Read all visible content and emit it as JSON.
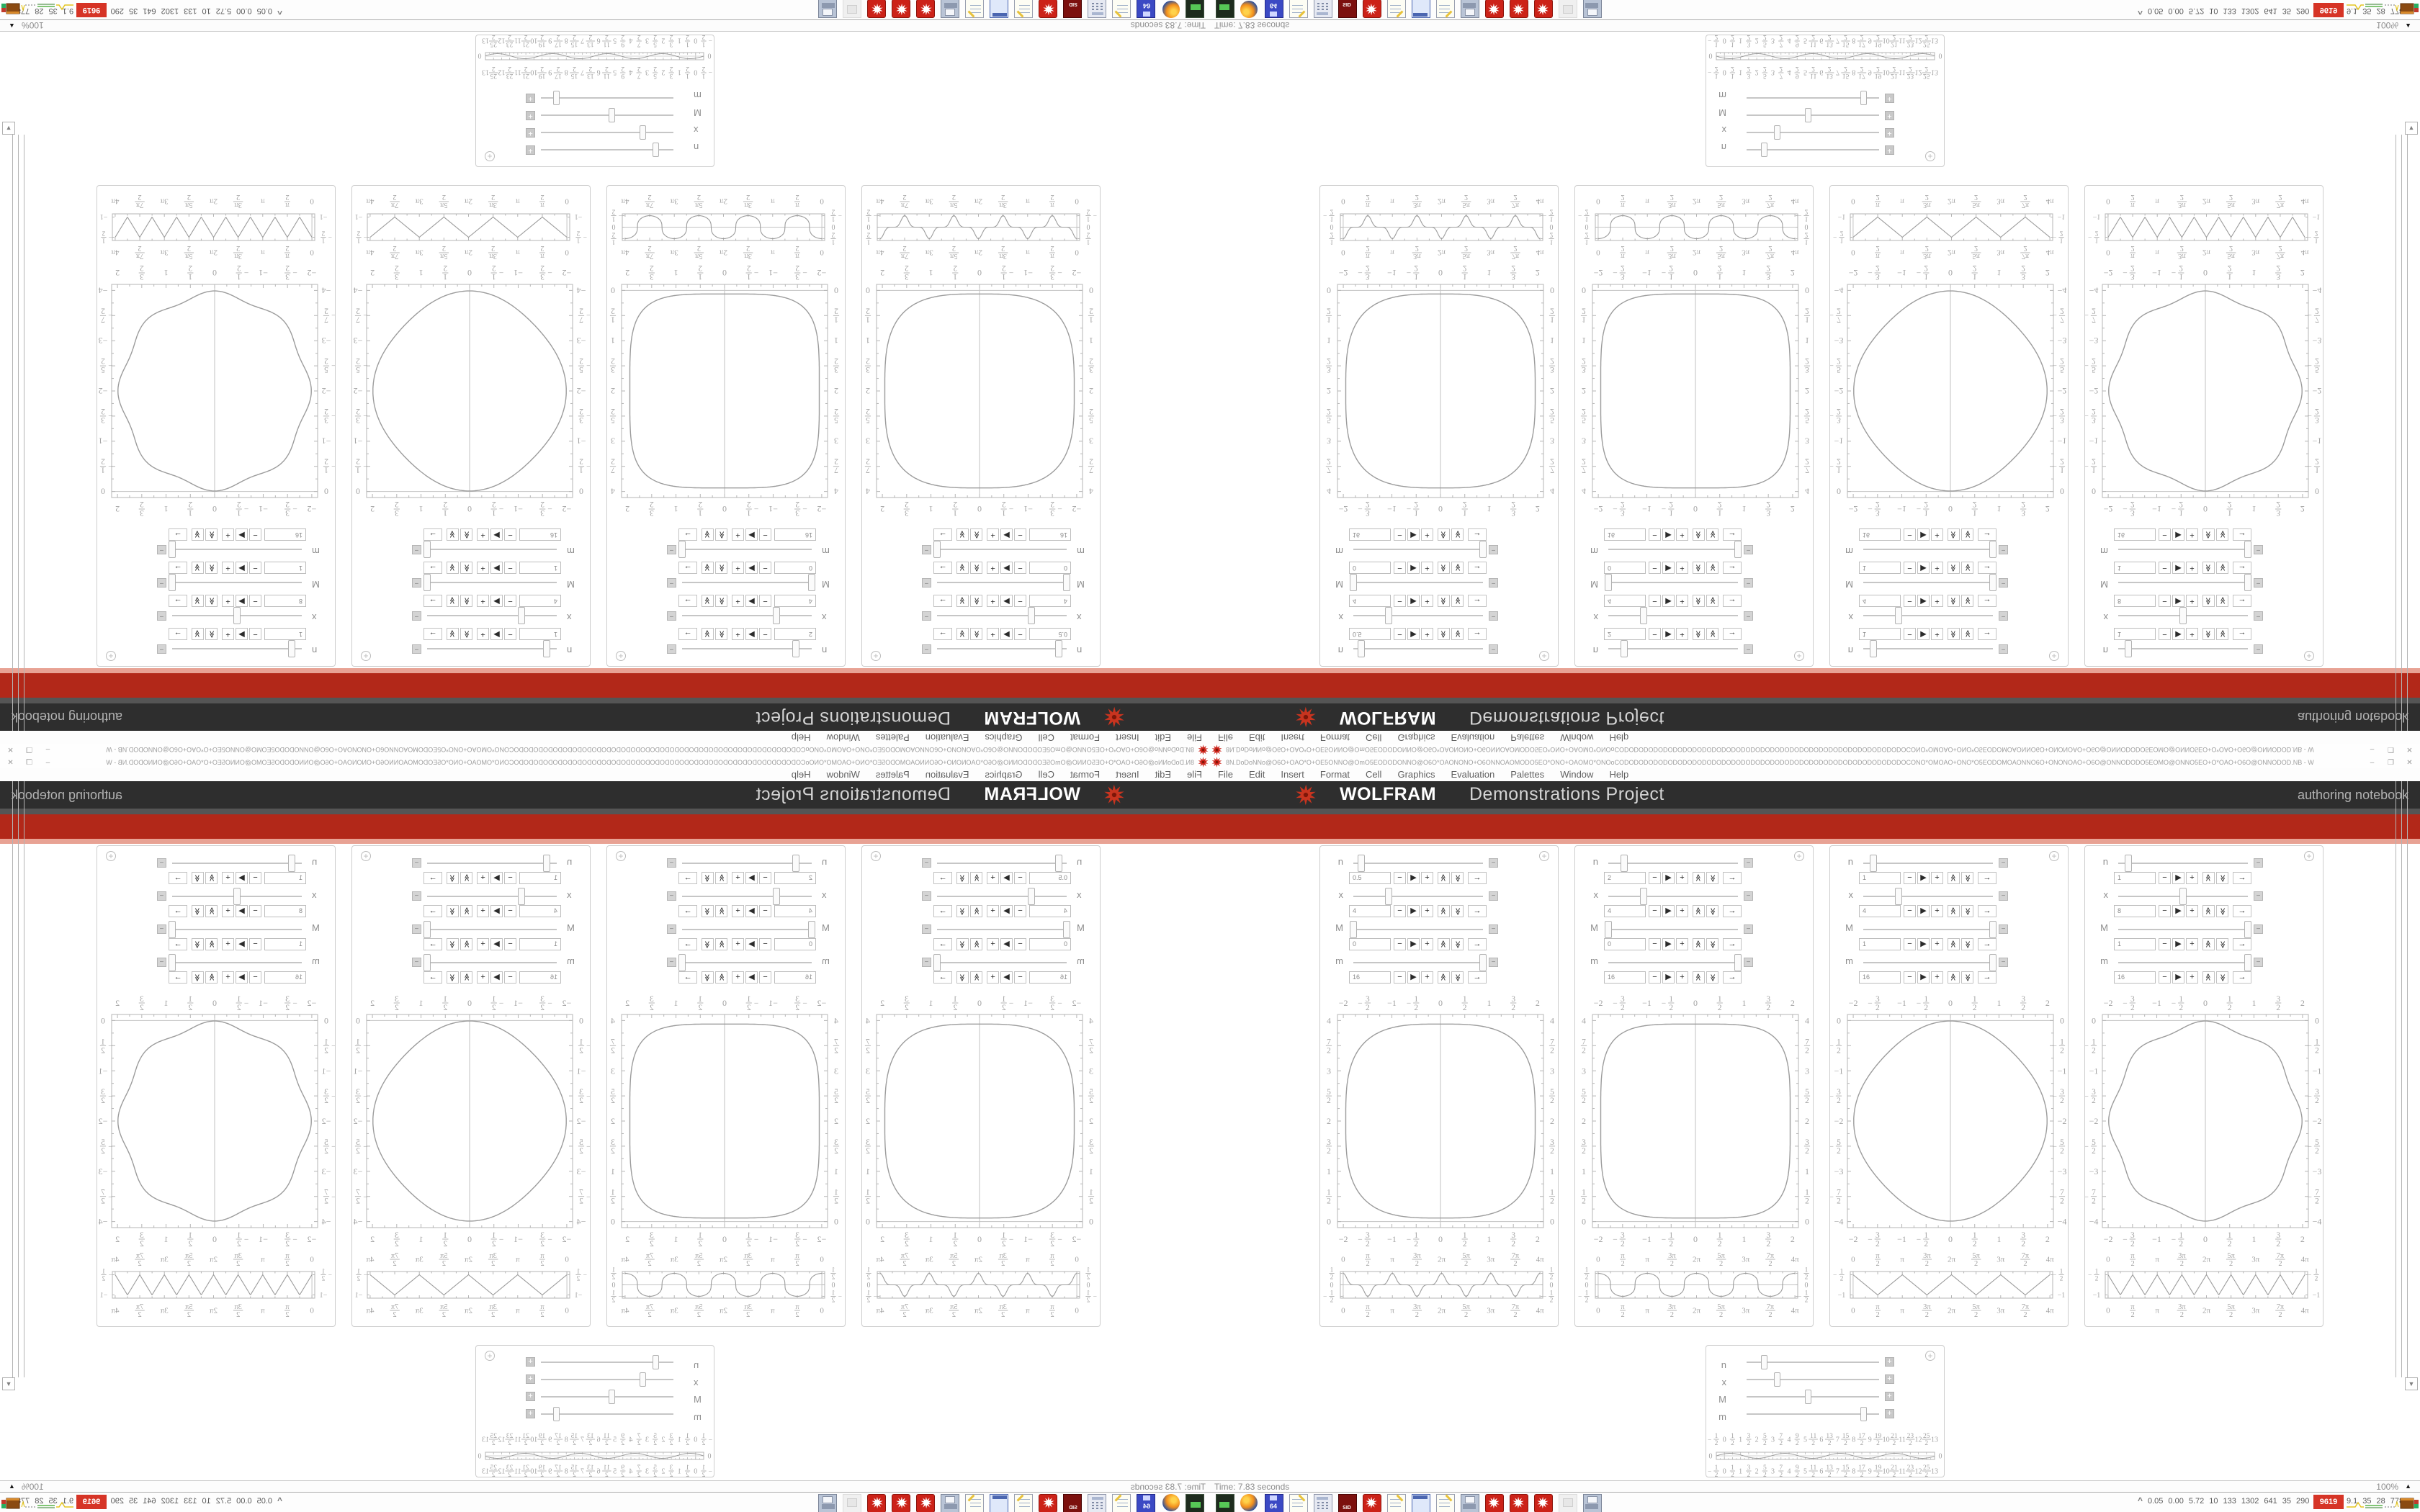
{
  "window": {
    "title_bar": {
      "title": "8N.DoDoNNo@O6O+OAO*O+OE5ONNO@OmO5EODODONNO@O6O*OAONONO+O6ONNOAOMODO5EO*ONO+OAOMO*ONOoCODODODODODODODODODODODODODODODODODODODODODODODODODODODODODOCONO*OMOAO+ONO*O5EODOMOAONNO6O+ONONOAO+O6O@ONNODODO5EOMO@ONNO5EO+O*OAO+O6O@ONNODOD.NB - W",
      "minimize": "–",
      "restore": "❐",
      "close": "✕"
    },
    "menu": [
      "File",
      "Edit",
      "Insert",
      "Format",
      "Cell",
      "Graphics",
      "Evaluation",
      "Palettes",
      "Window",
      "Help"
    ]
  },
  "banner": {
    "brand": "WOLFRAM",
    "brand_suffix": "Demonstrations Project",
    "right_label": "authoring notebook"
  },
  "colors": {
    "banner_bg": "#2e2e2e",
    "banner_divider": "#555555",
    "red_band": "#b22819",
    "red_band_edge": "#e8a294",
    "accent_red": "#cc2f1d",
    "plot_line": "#9c9c9c",
    "plot_frame": "#b5b5b5",
    "plot_label": "#a2a2a2"
  },
  "status_bar": {
    "time": "Time: 7.83 seconds",
    "zoom": "100%"
  },
  "taskbar": {
    "icons": [
      "terminal-icon",
      "firefox-icon",
      "floppy-64-icon",
      "notepad-icon",
      "calculator-icon",
      "red-book-icon",
      "mathematica-icon",
      "notepad-icon",
      "window-icon",
      "notepad-icon",
      "printer-icon",
      "mathematica-icon",
      "mathematica-icon",
      "mathematica-icon",
      "faded-image-icon",
      "printer-icon"
    ],
    "expand_chevron": "^",
    "stats": [
      "0.05",
      "0.00",
      "5.72",
      "10",
      "133",
      "1302",
      "641",
      "35",
      "290",
      "378",
      "12",
      "9.1",
      "35",
      "28",
      "7780"
    ],
    "alert": "9619"
  },
  "stepper_buttons": [
    "−",
    "▶",
    "+",
    "chevron-up",
    "chevron-down",
    "→"
  ],
  "cells": [
    {
      "sliders": [
        {
          "label": "n",
          "value": "0.5",
          "fraction": 0.06
        },
        {
          "label": "x",
          "value": "4",
          "fraction": 0.27
        },
        {
          "label": "M",
          "value": "0",
          "fraction": 0.0
        },
        {
          "label": "m",
          "value": "16",
          "fraction": 1.0
        }
      ]
    },
    {
      "sliders": [
        {
          "label": "n",
          "value": "2",
          "fraction": 0.12
        },
        {
          "label": "x",
          "value": "4",
          "fraction": 0.27
        },
        {
          "label": "M",
          "value": "0",
          "fraction": 0.0
        },
        {
          "label": "m",
          "value": "16",
          "fraction": 1.0
        }
      ]
    },
    {
      "sliders": [
        {
          "label": "n",
          "value": "1",
          "fraction": 0.08
        },
        {
          "label": "x",
          "value": "4",
          "fraction": 0.27
        },
        {
          "label": "M",
          "value": "1",
          "fraction": 1.0
        },
        {
          "label": "m",
          "value": "16",
          "fraction": 1.0
        }
      ]
    },
    {
      "sliders": [
        {
          "label": "n",
          "value": "1",
          "fraction": 0.08
        },
        {
          "label": "x",
          "value": "8",
          "fraction": 0.5
        },
        {
          "label": "M",
          "value": "1",
          "fraction": 1.0
        },
        {
          "label": "m",
          "value": "16",
          "fraction": 1.0
        }
      ]
    }
  ],
  "widget": {
    "sliders": [
      {
        "label": "n",
        "fraction": 0.13
      },
      {
        "label": "x",
        "fraction": 0.23
      },
      {
        "label": "M",
        "fraction": 0.46
      },
      {
        "label": "m",
        "fraction": 0.88
      }
    ]
  },
  "chart_data": [
    {
      "id": "demo-1-main",
      "type": "line",
      "curve": "superellipse",
      "center": [
        0,
        2
      ],
      "radii": [
        1.95,
        1.93
      ],
      "exponent": 3.2,
      "xlim": [
        -2,
        2
      ],
      "ylim": [
        0,
        4
      ],
      "x_ticks": [
        "-2",
        "-3/2",
        "-1",
        "-1/2",
        "0",
        "1/2",
        "1",
        "3/2",
        "2"
      ],
      "y_ticks": [
        "0",
        "1/2",
        "1",
        "3/2",
        "2",
        "5/2",
        "3",
        "7/2",
        "4"
      ],
      "grid": false,
      "frame": true
    },
    {
      "id": "demo-1-mini",
      "type": "line",
      "curve": "cusp-wave",
      "amplitude": 0.5,
      "period": "π",
      "xlim": [
        0,
        12.566
      ],
      "ylim": [
        -0.5,
        0.5
      ],
      "x_ticks": [
        "0",
        "π/2",
        "π",
        "3π/2",
        "2π",
        "5π/2",
        "3π",
        "7π/2",
        "4π"
      ],
      "y_ticks": [
        "1/2",
        "0",
        "-1/2"
      ]
    },
    {
      "id": "demo-2-main",
      "type": "line",
      "curve": "superellipse",
      "center": [
        0,
        2
      ],
      "radii": [
        1.95,
        1.93
      ],
      "exponent": 4.2,
      "xlim": [
        -2,
        2
      ],
      "ylim": [
        0,
        4
      ],
      "x_ticks": [
        "-2",
        "-3/2",
        "-1",
        "-1/2",
        "0",
        "1/2",
        "1",
        "3/2",
        "2"
      ],
      "y_ticks": [
        "0",
        "1/2",
        "1",
        "3/2",
        "2",
        "5/2",
        "3",
        "7/2",
        "4"
      ],
      "grid": false,
      "frame": true
    },
    {
      "id": "demo-2-mini",
      "type": "line",
      "curve": "rounded-square-wave",
      "amplitude": 0.5,
      "period": "π",
      "xlim": [
        0,
        12.566
      ],
      "ylim": [
        -0.5,
        0.5
      ],
      "x_ticks": [
        "0",
        "π/2",
        "π",
        "3π/2",
        "2π",
        "5π/2",
        "3π",
        "7π/2",
        "4π"
      ],
      "y_ticks": [
        "1/2",
        "0",
        "-1/2"
      ]
    },
    {
      "id": "demo-3-main",
      "type": "line",
      "curve": "rippled-circle",
      "center": [
        0,
        -2
      ],
      "radius": 1.93,
      "ripple_amplitude": 0.06,
      "ripple_count": 4,
      "xlim": [
        -2,
        2
      ],
      "ylim": [
        -4,
        0
      ],
      "x_ticks": [
        "-2",
        "-3/2",
        "-1",
        "-1/2",
        "0",
        "1/2",
        "1",
        "3/2",
        "2"
      ],
      "y_ticks": [
        "0",
        "-1/2",
        "-1",
        "-3/2",
        "-2",
        "-5/2",
        "-3",
        "-7/2",
        "-4"
      ],
      "grid": false,
      "frame": true
    },
    {
      "id": "demo-3-mini",
      "type": "line",
      "curve": "triangle-wave",
      "period": "π",
      "xlim": [
        0,
        12.566
      ],
      "ylim": [
        -1,
        -0.5
      ],
      "x_ticks": [
        "0",
        "π/2",
        "π",
        "3π/2",
        "2π",
        "5π/2",
        "3π",
        "7π/2",
        "4π"
      ],
      "y_ticks": [
        "-1/2",
        "-1"
      ]
    },
    {
      "id": "demo-4-main",
      "type": "line",
      "curve": "rippled-circle",
      "center": [
        0,
        -2
      ],
      "radius": 1.93,
      "ripple_amplitude": 0.06,
      "ripple_count": 8,
      "xlim": [
        -2,
        2
      ],
      "ylim": [
        -4,
        0
      ],
      "x_ticks": [
        "-2",
        "-3/2",
        "-1",
        "-1/2",
        "0",
        "1/2",
        "1",
        "3/2",
        "2"
      ],
      "y_ticks": [
        "0",
        "-1/2",
        "-1",
        "-3/2",
        "-2",
        "-5/2",
        "-3",
        "-7/2",
        "-4"
      ],
      "grid": false,
      "frame": true
    },
    {
      "id": "demo-4-mini",
      "type": "line",
      "curve": "triangle-wave",
      "period": "π/2",
      "xlim": [
        0,
        12.566
      ],
      "ylim": [
        -1,
        -0.5
      ],
      "x_ticks": [
        "0",
        "π/2",
        "π",
        "3π/2",
        "2π",
        "5π/2",
        "3π",
        "7π/2",
        "4π"
      ],
      "y_ticks": [
        "-1/2",
        "-1"
      ]
    },
    {
      "id": "widget-strip",
      "type": "line",
      "curve": "sine",
      "amplitude": 0.1,
      "period": 3.4,
      "xlim": [
        -0.5,
        13
      ],
      "ylim": [
        -0.2,
        0.2
      ],
      "x_ticks": [
        "-1/2",
        "0",
        "1/2",
        "1",
        "3/2",
        "2",
        "5/2",
        "3",
        "7/2",
        "4",
        "9/2",
        "5",
        "11/2",
        "6",
        "13/2",
        "7",
        "15/2",
        "8",
        "17/2",
        "9",
        "19/2",
        "10",
        "21/2",
        "11",
        "23/2",
        "12",
        "25/2",
        "13"
      ],
      "y_ticks": [
        "0"
      ]
    }
  ]
}
